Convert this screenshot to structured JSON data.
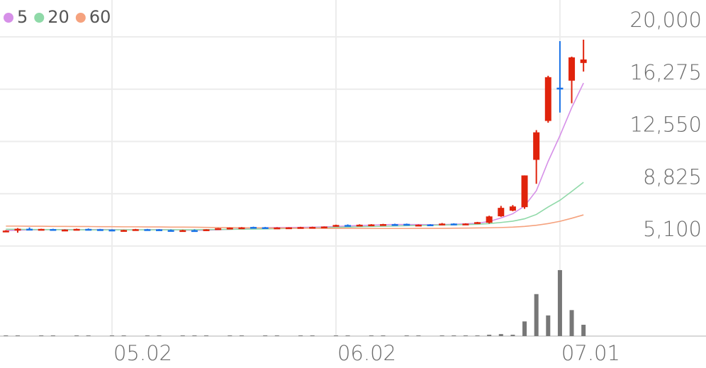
{
  "chart_data": {
    "type": "candlestick",
    "categories": [
      null,
      null,
      null,
      null,
      null,
      null,
      null,
      null,
      null,
      null,
      null,
      null,
      null,
      null,
      null,
      null,
      null,
      null,
      null,
      null,
      null,
      null,
      null,
      null,
      null,
      null,
      null,
      null,
      null,
      null,
      null,
      null,
      null,
      null,
      null,
      null,
      null,
      null,
      null,
      null,
      null,
      null,
      null,
      null,
      null,
      null,
      null,
      null,
      null,
      null
    ],
    "open": [
      6150,
      6200,
      6330,
      6300,
      6310,
      6220,
      6240,
      6320,
      6300,
      6270,
      6180,
      6240,
      6300,
      6290,
      6240,
      6200,
      6230,
      6210,
      6300,
      6380,
      6420,
      6460,
      6440,
      6400,
      6420,
      6400,
      6440,
      6470,
      6480,
      6600,
      6580,
      6620,
      6620,
      6660,
      6680,
      6600,
      6640,
      6600,
      6700,
      6660,
      6700,
      6760,
      7220,
      7620,
      7870,
      11240,
      14010,
      16380,
      16880,
      18140
    ],
    "high": [
      6230,
      6380,
      6420,
      6330,
      6330,
      6290,
      6340,
      6350,
      6320,
      6290,
      6260,
      6320,
      6320,
      6310,
      6280,
      6260,
      6290,
      6300,
      6380,
      6420,
      6450,
      6480,
      6460,
      6440,
      6440,
      6470,
      6480,
      6500,
      6620,
      6640,
      6650,
      6660,
      6680,
      6690,
      6700,
      6640,
      6660,
      6740,
      6720,
      6720,
      6820,
      7260,
      7960,
      8020,
      10130,
      13360,
      17230,
      19700,
      18590,
      19800
    ],
    "low": [
      6120,
      6050,
      6260,
      6260,
      6200,
      6200,
      6220,
      6290,
      6250,
      6220,
      6170,
      6220,
      6260,
      6220,
      6160,
      6170,
      6190,
      6170,
      6280,
      6350,
      6390,
      6380,
      6340,
      6380,
      6400,
      6390,
      6420,
      6450,
      6470,
      6560,
      6560,
      6590,
      6600,
      6620,
      6570,
      6560,
      6530,
      6580,
      6640,
      6640,
      6680,
      6700,
      7180,
      7580,
      7750,
      9530,
      13880,
      14610,
      15270,
      17530
    ],
    "close": [
      6200,
      6330,
      6300,
      6320,
      6220,
      6270,
      6320,
      6300,
      6270,
      6240,
      6240,
      6300,
      6280,
      6240,
      6200,
      6230,
      6210,
      6290,
      6370,
      6410,
      6430,
      6430,
      6400,
      6420,
      6430,
      6450,
      6460,
      6490,
      6600,
      6580,
      6620,
      6640,
      6660,
      6650,
      6600,
      6620,
      6560,
      6700,
      6660,
      6700,
      6800,
      7210,
      7820,
      7920,
      10130,
      13200,
      17130,
      16280,
      18540,
      18390
    ],
    "up_color": "#e0230c",
    "down_color": "#1a73e8",
    "series": [
      {
        "name": "5",
        "color": "#d690e8",
        "values": [
          6200,
          6230,
          6250,
          6260,
          6270,
          6270,
          6260,
          6270,
          6280,
          6270,
          6250,
          6250,
          6260,
          6270,
          6260,
          6240,
          6220,
          6230,
          6260,
          6290,
          6330,
          6370,
          6400,
          6420,
          6420,
          6430,
          6440,
          6460,
          6490,
          6530,
          6560,
          6590,
          6620,
          6640,
          6630,
          6630,
          6620,
          6630,
          6650,
          6680,
          6720,
          6850,
          7100,
          7400,
          7950,
          9040,
          11130,
          12960,
          14960,
          16710
        ]
      },
      {
        "name": "20",
        "color": "#8fd9a8",
        "values": [
          6300,
          6290,
          6280,
          6270,
          6270,
          6260,
          6260,
          6250,
          6250,
          6250,
          6250,
          6250,
          6250,
          6250,
          6260,
          6260,
          6260,
          6270,
          6280,
          6290,
          6300,
          6310,
          6320,
          6340,
          6350,
          6370,
          6390,
          6410,
          6430,
          6450,
          6470,
          6490,
          6510,
          6530,
          6550,
          6570,
          6580,
          6600,
          6610,
          6630,
          6650,
          6700,
          6780,
          6870,
          7040,
          7350,
          7880,
          8360,
          8990,
          9640
        ]
      },
      {
        "name": "60",
        "color": "#f5a27e",
        "values": [
          6520,
          6520,
          6510,
          6510,
          6500,
          6500,
          6490,
          6490,
          6480,
          6480,
          6470,
          6470,
          6460,
          6460,
          6450,
          6450,
          6440,
          6430,
          6420,
          6410,
          6400,
          6400,
          6390,
          6380,
          6380,
          6370,
          6370,
          6360,
          6360,
          6360,
          6350,
          6350,
          6350,
          6350,
          6350,
          6360,
          6360,
          6360,
          6370,
          6380,
          6390,
          6400,
          6420,
          6450,
          6500,
          6580,
          6700,
          6860,
          7080,
          7320
        ]
      }
    ],
    "volume": {
      "color": "#777777",
      "values": [
        1,
        1,
        0,
        1,
        1,
        0,
        1,
        1,
        0,
        1,
        1,
        0,
        1,
        1,
        0,
        1,
        1,
        1,
        0,
        1,
        1,
        0,
        1,
        1,
        0,
        1,
        1,
        0,
        1,
        1,
        0,
        1,
        1,
        0,
        1,
        1,
        0,
        1,
        1,
        1,
        1,
        2,
        3,
        2,
        22,
        63,
        31,
        99,
        39,
        17
      ],
      "vlim": [
        0,
        100
      ]
    },
    "ylim": [
      5100,
      20000
    ],
    "yticks": [
      {
        "value": 20000,
        "label": "20,000"
      },
      {
        "value": 16275,
        "label": "16,275"
      },
      {
        "value": 12550,
        "label": "12,550"
      },
      {
        "value": 8825,
        "label": "8,825"
      },
      {
        "value": 5100,
        "label": "5,100"
      }
    ],
    "xticks": [
      {
        "value": 9,
        "label": "05.02"
      },
      {
        "value": 28,
        "label": "06.02"
      },
      {
        "value": 47,
        "label": "07.01"
      }
    ],
    "grid": true
  }
}
